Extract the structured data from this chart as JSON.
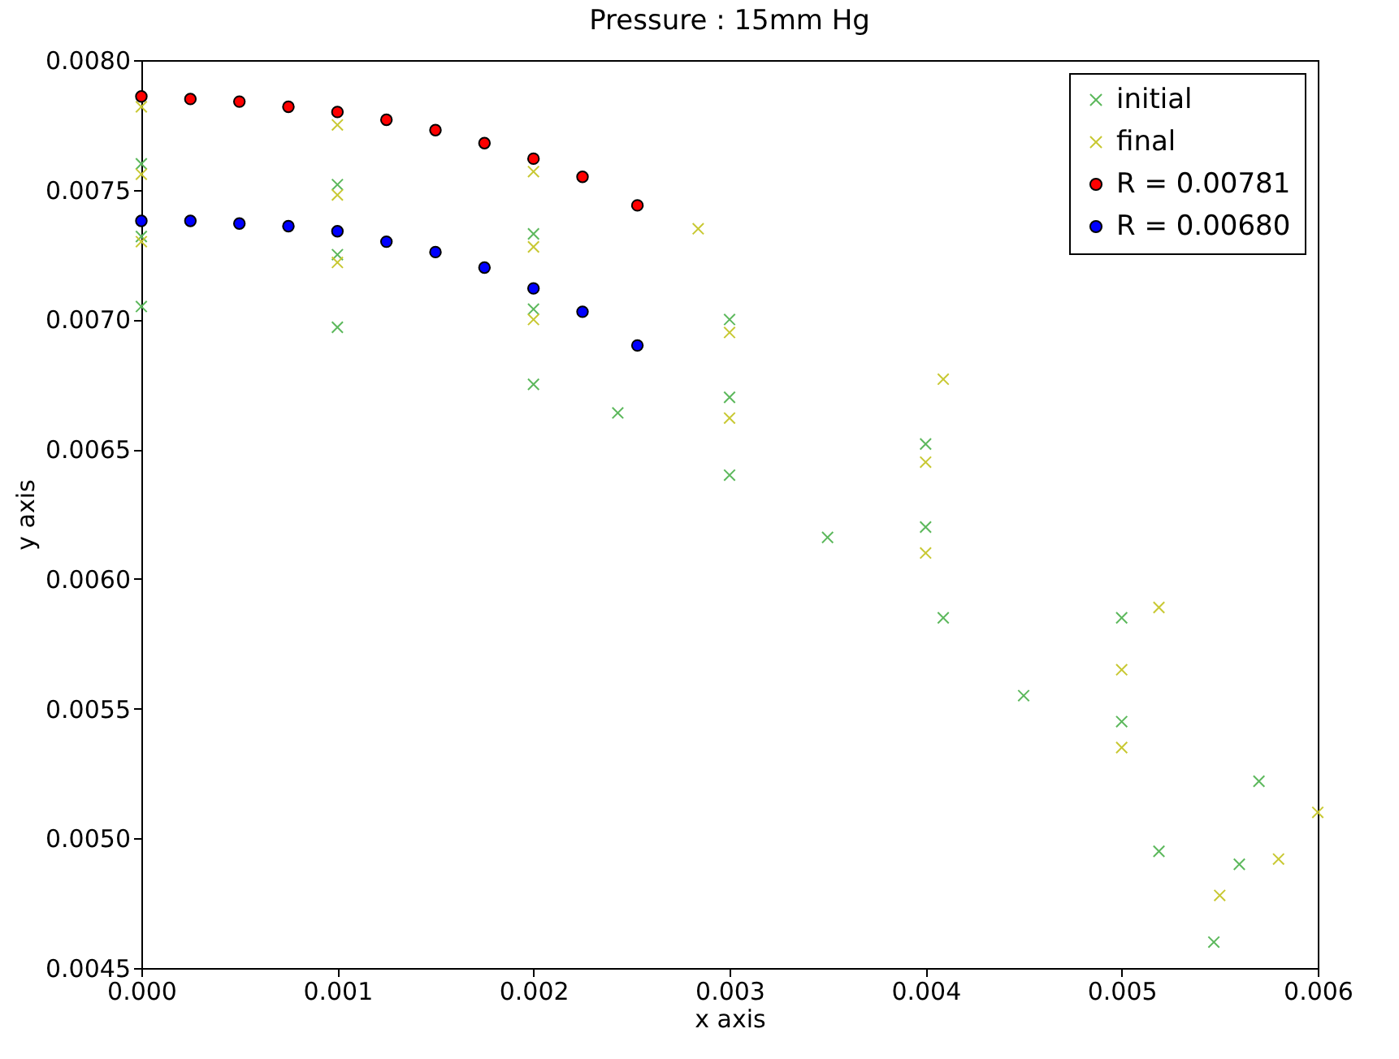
{
  "chart_data": {
    "type": "scatter",
    "title": "Pressure : 15mm Hg",
    "xlabel": "x axis",
    "ylabel": "y axis",
    "xlim": [
      0,
      0.006
    ],
    "xticks": [
      {
        "value": 0,
        "label": "0.000"
      },
      {
        "value": 0.001,
        "label": "0.001"
      },
      {
        "value": 0.002,
        "label": "0.002"
      },
      {
        "value": 0.003,
        "label": "0.003"
      },
      {
        "value": 0.004,
        "label": "0.004"
      },
      {
        "value": 0.005,
        "label": "0.005"
      },
      {
        "value": 0.006,
        "label": "0.006"
      }
    ],
    "ylim": [
      0.0045,
      0.008
    ],
    "yticks": [
      {
        "value": 0.0045,
        "label": "0.0045"
      },
      {
        "value": 0.005,
        "label": "0.0050"
      },
      {
        "value": 0.0055,
        "label": "0.0055"
      },
      {
        "value": 0.006,
        "label": "0.0060"
      },
      {
        "value": 0.0065,
        "label": "0.0065"
      },
      {
        "value": 0.007,
        "label": "0.0070"
      },
      {
        "value": 0.0075,
        "label": "0.0075"
      },
      {
        "value": 0.008,
        "label": "0.0080"
      }
    ],
    "grid": false,
    "legend": "top right",
    "series": [
      {
        "name": "initial",
        "color": "#5cb85c",
        "marker": "cross",
        "x": [
          0,
          0.001,
          0.002,
          0.00243,
          0.003,
          0.0035,
          0.00409,
          0.0045,
          0.00519,
          0.00547,
          0,
          0.001,
          0.002,
          0.003,
          0.004,
          0.005,
          0.0056,
          0,
          0.001,
          0.002,
          0.003,
          0.004,
          0.005,
          0.0057
        ],
        "values": [
          0.00705,
          0.00697,
          0.00675,
          0.00664,
          0.0064,
          0.00616,
          0.00585,
          0.00555,
          0.00495,
          0.0046,
          0.00732,
          0.00725,
          0.00704,
          0.0067,
          0.0062,
          0.00545,
          0.0049,
          0.0076,
          0.00752,
          0.00733,
          0.007,
          0.00652,
          0.00585,
          0.00522
        ]
      },
      {
        "name": "final",
        "color": "#c8c832",
        "marker": "cross",
        "x": [
          0,
          0.001,
          0.002,
          0.003,
          0.004,
          0.005,
          0.0055,
          0,
          0.001,
          0.002,
          0.003,
          0.004,
          0.005,
          0.0058,
          0,
          0.001,
          0.002,
          0.00284,
          0.00409,
          0.00519,
          0.006
        ],
        "values": [
          0.0073,
          0.00722,
          0.007,
          0.00662,
          0.0061,
          0.00535,
          0.00478,
          0.00756,
          0.00748,
          0.00728,
          0.00695,
          0.00645,
          0.00565,
          0.00492,
          0.00782,
          0.00775,
          0.00757,
          0.00735,
          0.00677,
          0.00589,
          0.0051
        ]
      },
      {
        "name": "R = 0.00781",
        "color": "#ff0000",
        "marker": "circle",
        "x": [
          0,
          0.00025,
          0.0005,
          0.00075,
          0.001,
          0.00125,
          0.0015,
          0.00175,
          0.002,
          0.00225,
          0.00253
        ],
        "values": [
          0.00786,
          0.00785,
          0.00784,
          0.00782,
          0.0078,
          0.00777,
          0.00773,
          0.00768,
          0.00762,
          0.00755,
          0.00744
        ]
      },
      {
        "name": "R = 0.00680",
        "color": "#0000ff",
        "marker": "circle",
        "x": [
          0,
          0.00025,
          0.0005,
          0.00075,
          0.001,
          0.00125,
          0.0015,
          0.00175,
          0.002,
          0.00225,
          0.00253
        ],
        "values": [
          0.00738,
          0.00738,
          0.00737,
          0.00736,
          0.00734,
          0.0073,
          0.00726,
          0.0072,
          0.00712,
          0.00703,
          0.0069
        ]
      }
    ]
  }
}
